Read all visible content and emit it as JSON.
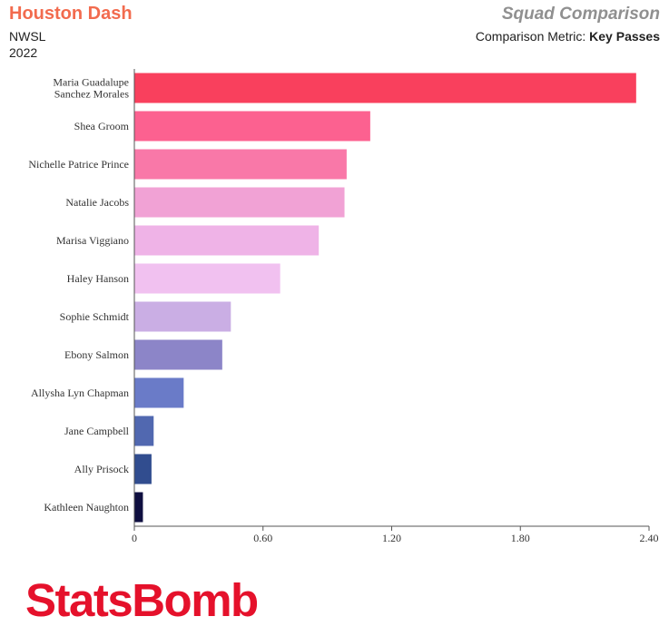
{
  "header": {
    "team": "Houston Dash",
    "league": "NWSL",
    "season": "2022",
    "report_title": "Squad Comparison",
    "metric_label": "Comparison Metric:",
    "metric_value": "Key Passes"
  },
  "brand": {
    "logo_text": "StatsBomb",
    "color": "#e5112b"
  },
  "colors": {
    "team_accent": "#f26b4e",
    "title_gray": "#909090"
  },
  "chart_data": {
    "type": "bar",
    "orientation": "horizontal",
    "categories": [
      "Maria Guadalupe Sanchez Morales",
      "Shea Groom",
      "Nichelle Patrice Prince",
      "Natalie Jacobs",
      "Marisa Viggiano",
      "Haley Hanson",
      "Sophie Schmidt",
      "Ebony Salmon",
      "Allysha Lyn Chapman",
      "Jane Campbell",
      "Ally Prisock",
      "Kathleen Naughton"
    ],
    "category_label_lines": [
      [
        "Maria Guadalupe",
        "Sanchez Morales"
      ],
      [
        "Shea Groom"
      ],
      [
        "Nichelle Patrice Prince"
      ],
      [
        "Natalie Jacobs"
      ],
      [
        "Marisa Viggiano"
      ],
      [
        "Haley Hanson"
      ],
      [
        "Sophie Schmidt"
      ],
      [
        "Ebony Salmon"
      ],
      [
        "Allysha Lyn Chapman"
      ],
      [
        "Jane Campbell"
      ],
      [
        "Ally Prisock"
      ],
      [
        "Kathleen Naughton"
      ]
    ],
    "values": [
      2.34,
      1.1,
      0.99,
      0.98,
      0.86,
      0.68,
      0.45,
      0.41,
      0.23,
      0.09,
      0.08,
      0.04
    ],
    "colors": [
      "#f9405d",
      "#fc6190",
      "#f978a8",
      "#f1a2d5",
      "#efb3e7",
      "#f1c1f0",
      "#caaee4",
      "#8c85c8",
      "#6a7bc8",
      "#5168b0",
      "#314d8f",
      "#0f0f40"
    ],
    "xlim": [
      0,
      2.4
    ],
    "xticks": [
      "0",
      "0.60",
      "1.20",
      "1.80",
      "2.40"
    ],
    "tick_values": [
      0,
      0.6,
      1.2,
      1.8,
      2.4
    ],
    "grid": false,
    "xlabel": "",
    "ylabel": ""
  }
}
